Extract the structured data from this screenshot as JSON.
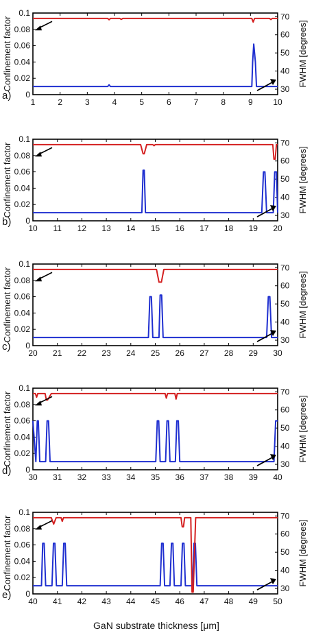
{
  "chart_data": {
    "type": "line",
    "xlabel": "GaN substrate thickness [μm]",
    "left_ylabel": "Confinement factor",
    "right_ylabel": "FWHM [degrees]",
    "left_ylim": [
      0,
      0.1
    ],
    "left_yticks": [
      "0",
      "0.02",
      "0.04",
      "0.06",
      "0.08",
      "0.1"
    ],
    "right_ylim": [
      27,
      72
    ],
    "right_yticks": [
      "30",
      "40",
      "50",
      "60",
      "70"
    ],
    "colors": {
      "confinement": "#1f2fd0",
      "fwhm": "#d42020",
      "frame": "#000000"
    },
    "panels": [
      {
        "label": "a)",
        "xlim": [
          1,
          10
        ],
        "xticks": [
          "1",
          "2",
          "3",
          "4",
          "5",
          "6",
          "7",
          "8",
          "9",
          "10"
        ],
        "series": [
          {
            "axis": "left",
            "x": [
              1,
              3.75,
              3.8,
              3.85,
              9.05,
              9.08,
              9.12,
              9.18,
              9.22,
              9.3,
              10
            ],
            "y": [
              0.01,
              0.01,
              0.012,
              0.01,
              0.01,
              0.04,
              0.062,
              0.04,
              0.01,
              0.01,
              0.01
            ]
          },
          {
            "axis": "right",
            "x": [
              1,
              3.75,
              3.8,
              3.85,
              4.2,
              4.25,
              4.3,
              9.05,
              9.1,
              9.15,
              9.7,
              9.75,
              9.8,
              10
            ],
            "y": [
              69,
              69,
              68.3,
              69,
              69,
              68.5,
              69,
              69,
              67,
              69,
              69,
              68.4,
              69,
              69
            ]
          }
        ]
      },
      {
        "label": "b)",
        "xlim": [
          10,
          20
        ],
        "xticks": [
          "10",
          "11",
          "12",
          "13",
          "14",
          "15",
          "16",
          "17",
          "18",
          "19",
          "20"
        ],
        "series": [
          {
            "axis": "left",
            "x": [
              10,
              14.45,
              14.5,
              14.55,
              14.6,
              19.35,
              19.42,
              19.48,
              19.55,
              19.82,
              19.88,
              19.95,
              20
            ],
            "y": [
              0.01,
              0.01,
              0.062,
              0.062,
              0.01,
              0.01,
              0.06,
              0.06,
              0.01,
              0.01,
              0.06,
              0.06,
              0.01
            ]
          },
          {
            "axis": "right",
            "x": [
              10,
              14.4,
              14.5,
              14.55,
              14.65,
              14.9,
              14.95,
              15.0,
              19.8,
              19.85,
              19.9,
              19.95,
              20
            ],
            "y": [
              69,
              69,
              64,
              64,
              69,
              69,
              68.4,
              69,
              69,
              61,
              61,
              69,
              69
            ]
          }
        ]
      },
      {
        "label": "c)",
        "xlim": [
          20,
          30
        ],
        "xticks": [
          "20",
          "21",
          "22",
          "23",
          "24",
          "25",
          "26",
          "27",
          "28",
          "29",
          "30"
        ],
        "series": [
          {
            "axis": "left",
            "x": [
              20,
              24.72,
              24.78,
              24.84,
              24.9,
              25.15,
              25.2,
              25.26,
              25.32,
              29.55,
              29.62,
              29.68,
              29.75,
              30
            ],
            "y": [
              0.01,
              0.01,
              0.06,
              0.06,
              0.01,
              0.01,
              0.062,
              0.062,
              0.01,
              0.01,
              0.06,
              0.06,
              0.01,
              0.01
            ]
          },
          {
            "axis": "right",
            "x": [
              20,
              25.05,
              25.15,
              25.25,
              25.35,
              30
            ],
            "y": [
              69,
              69,
              62,
              62,
              69,
              69
            ]
          }
        ]
      },
      {
        "label": "d)",
        "xlim": [
          30,
          40
        ],
        "xticks": [
          "30",
          "31",
          "32",
          "33",
          "34",
          "35",
          "36",
          "37",
          "38",
          "39",
          "40"
        ],
        "series": [
          {
            "axis": "left",
            "x": [
              30,
              30.12,
              30.18,
              30.22,
              30.28,
              30.52,
              30.58,
              30.64,
              30.7,
              35.02,
              35.08,
              35.14,
              35.2,
              35.42,
              35.48,
              35.54,
              35.6,
              35.82,
              35.88,
              35.94,
              36.0,
              39.85,
              39.92,
              40
            ],
            "y": [
              0.06,
              0.01,
              0.06,
              0.06,
              0.01,
              0.01,
              0.06,
              0.06,
              0.01,
              0.01,
              0.06,
              0.06,
              0.01,
              0.01,
              0.06,
              0.06,
              0.01,
              0.01,
              0.06,
              0.06,
              0.01,
              0.01,
              0.06,
              0.06
            ]
          },
          {
            "axis": "right",
            "x": [
              30,
              30.1,
              30.15,
              30.2,
              30.5,
              30.55,
              30.6,
              30.75,
              35.4,
              35.45,
              35.5,
              35.8,
              35.85,
              35.9,
              40
            ],
            "y": [
              69,
              69,
              67,
              69,
              69,
              65.5,
              65.5,
              69,
              69,
              66.5,
              69,
              69,
              66,
              69,
              69
            ]
          }
        ]
      },
      {
        "label": "e)",
        "xlim": [
          40,
          50
        ],
        "xticks": [
          "40",
          "41",
          "42",
          "43",
          "44",
          "45",
          "46",
          "47",
          "48",
          "49",
          "50"
        ],
        "series": [
          {
            "axis": "left",
            "x": [
              40,
              40.35,
              40.4,
              40.46,
              40.52,
              40.78,
              40.84,
              40.9,
              40.96,
              41.2,
              41.26,
              41.32,
              41.38,
              45.2,
              45.26,
              45.32,
              45.38,
              45.6,
              45.66,
              45.72,
              45.78,
              46.05,
              46.11,
              46.17,
              46.23,
              46.52,
              46.58,
              46.64,
              46.7,
              50
            ],
            "y": [
              0.01,
              0.01,
              0.062,
              0.062,
              0.01,
              0.01,
              0.062,
              0.062,
              0.01,
              0.01,
              0.062,
              0.062,
              0.01,
              0.01,
              0.062,
              0.062,
              0.01,
              0.01,
              0.062,
              0.062,
              0.01,
              0.01,
              0.062,
              0.062,
              0.01,
              0.01,
              0.062,
              0.062,
              0.01,
              0.01
            ]
          },
          {
            "axis": "right",
            "x": [
              40,
              40.75,
              40.85,
              40.95,
              41.15,
              41.2,
              41.25,
              46.05,
              46.1,
              46.15,
              46.2,
              46.45,
              46.5,
              46.55,
              46.65,
              46.7,
              50
            ],
            "y": [
              69,
              69,
              65.5,
              69,
              69,
              67,
              69,
              69,
              64,
              64,
              69,
              69,
              28,
              28,
              69,
              69,
              69
            ]
          }
        ]
      }
    ]
  }
}
